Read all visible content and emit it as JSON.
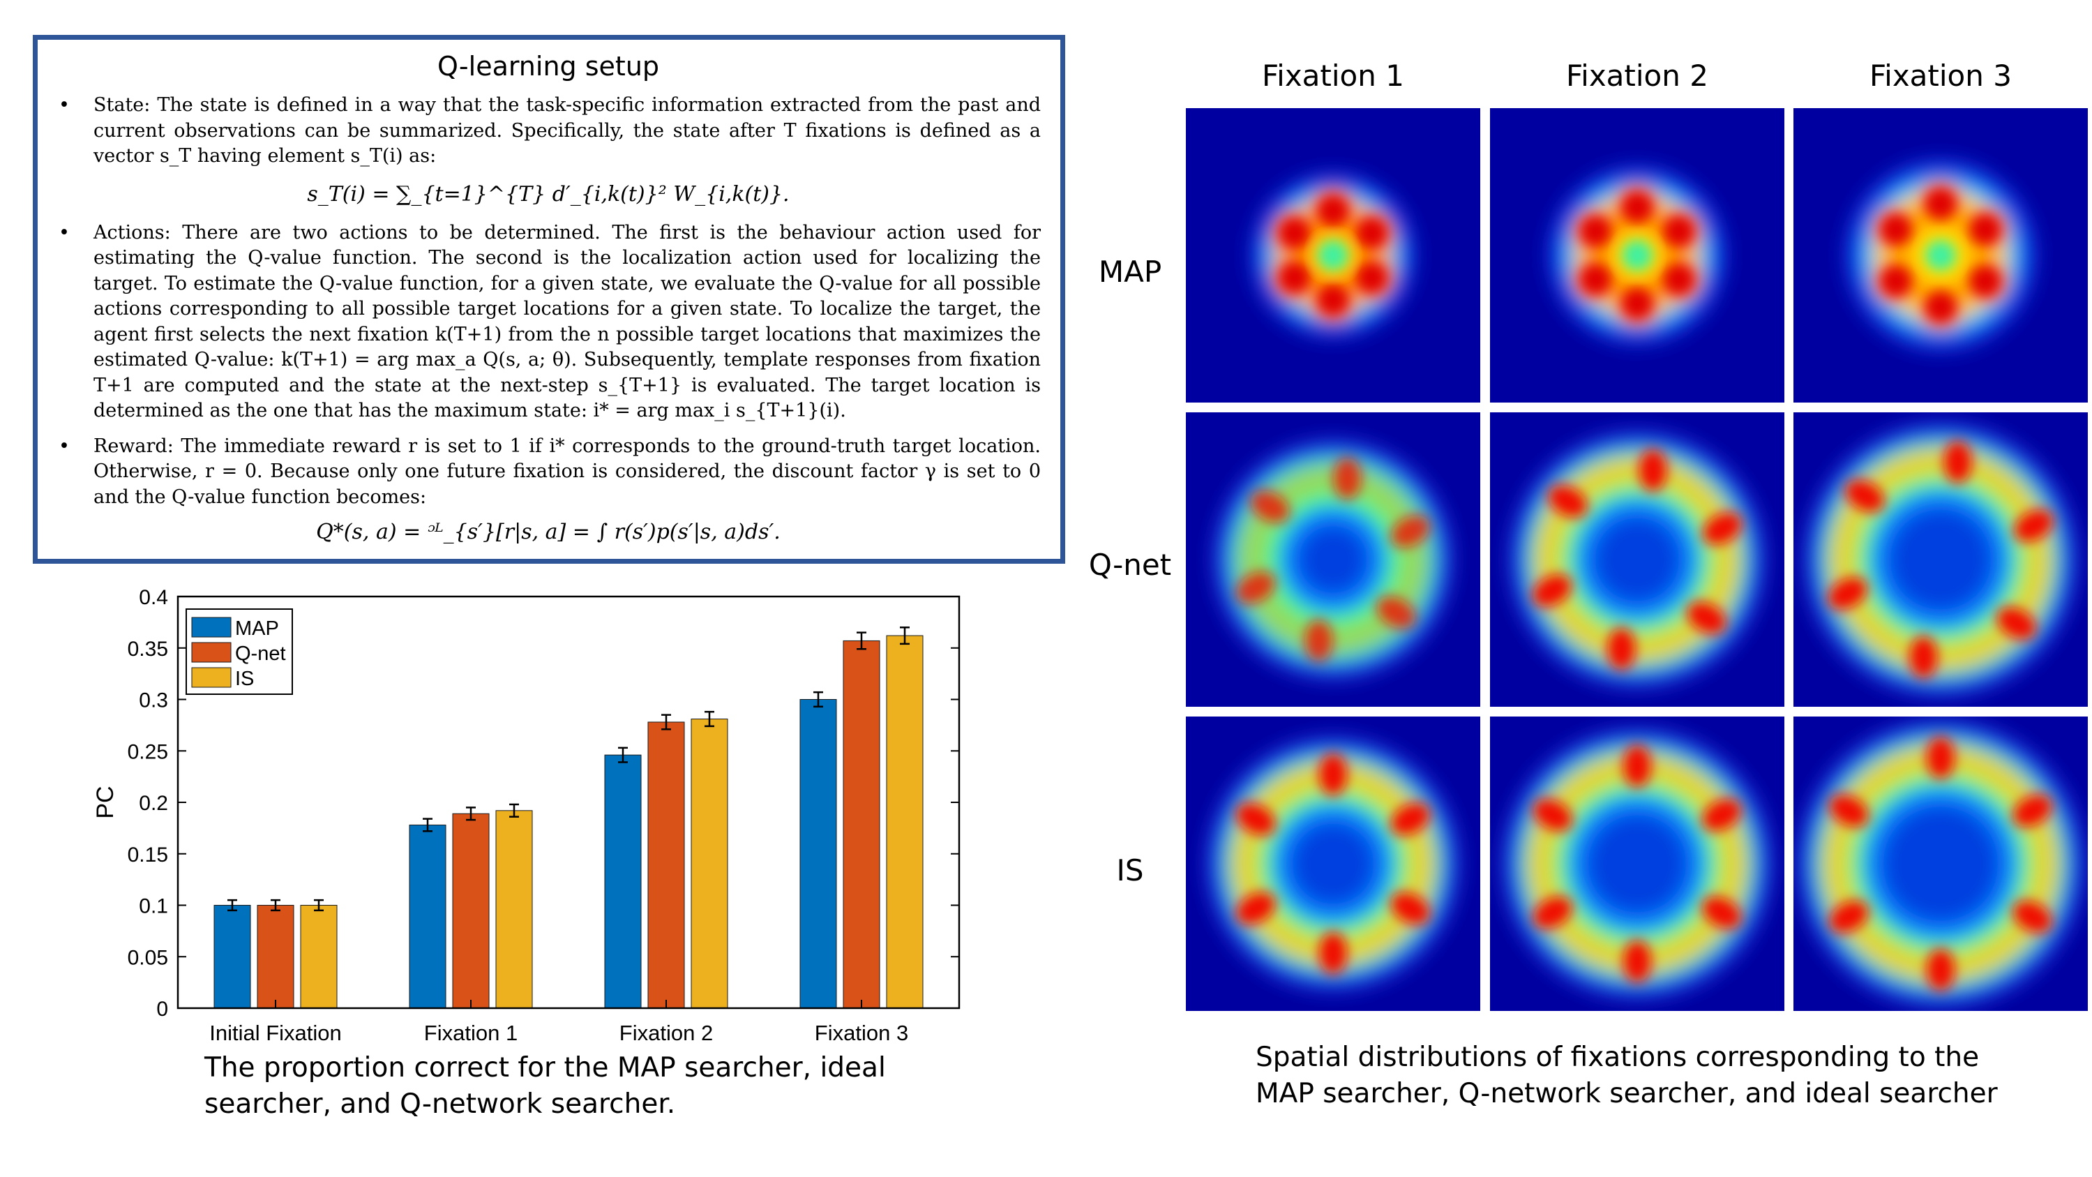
{
  "setup": {
    "title": "Q-learning setup",
    "state_text": "State: The state is defined in a way that the task-specific information extracted from the past and current observations can be summarized. Specifically, the state after T fixations is defined as a vector s_T having element s_T(i) as:",
    "state_eq": "s_T(i) = ∑_{t=1}^{T} d′_{i,k(t)}² W_{i,k(t)}.",
    "actions_text": "Actions: There are two actions to be determined. The first is the behaviour action used for estimating the Q-value function. The second is the localization action used for localizing the target. To estimate the Q-value function, for a given state, we evaluate the Q-value for all possible actions corresponding to all possible target locations for a given state. To localize the target, the agent first selects the next fixation k(T+1) from the n possible target locations that maximizes the estimated Q-value: k(T+1) = arg max_a Q(s, a; θ). Subsequently, template responses from fixation T+1 are computed and the state at the next-step s_{T+1} is evaluated. The target location is determined as the one that has the maximum state: i* = arg max_i s_{T+1}(i).",
    "reward_text": "Reward: The immediate reward r is set to 1 if i* corresponds to the ground-truth target location. Otherwise, r = 0. Because only one future fixation is considered, the discount factor γ is set to 0 and the Q-value function becomes:",
    "reward_eq": "Q*(s, a) = ᵓᴸ_{s′}[r|s, a] = ∫ r(s′)p(s′|s, a)ds′."
  },
  "chart_data": [
    {
      "type": "bar",
      "title": "",
      "xlabel": "",
      "ylabel": "PC",
      "categories": [
        "Initial Fixation",
        "Fixation 1",
        "Fixation 2",
        "Fixation 3"
      ],
      "series": [
        {
          "name": "MAP",
          "color": "#0072bd",
          "values": [
            0.1,
            0.178,
            0.246,
            0.3
          ],
          "errors": [
            0.005,
            0.006,
            0.007,
            0.007
          ]
        },
        {
          "name": "Q-net",
          "color": "#d95319",
          "values": [
            0.1,
            0.189,
            0.278,
            0.357
          ],
          "errors": [
            0.005,
            0.006,
            0.007,
            0.008
          ]
        },
        {
          "name": "IS",
          "color": "#edb120",
          "values": [
            0.1,
            0.192,
            0.281,
            0.362
          ],
          "errors": [
            0.005,
            0.006,
            0.007,
            0.008
          ]
        }
      ],
      "ylim": [
        0,
        0.4
      ],
      "yticks": [
        "0",
        "0.05",
        "0.1",
        "0.15",
        "0.2",
        "0.25",
        "0.3",
        "0.35",
        "0.4"
      ],
      "legend": "top-left",
      "caption": "The proportion correct for the MAP searcher, ideal searcher, and Q-network searcher."
    },
    {
      "type": "heatmap",
      "columns": [
        "Fixation 1",
        "Fixation 2",
        "Fixation 3"
      ],
      "rows": [
        "MAP",
        "Q-net",
        "IS"
      ],
      "colormap": "jet",
      "background": "#0000a0",
      "caption": "Spatial distributions of fixations corresponding to the MAP searcher, Q-network searcher, and ideal searcher"
    }
  ]
}
